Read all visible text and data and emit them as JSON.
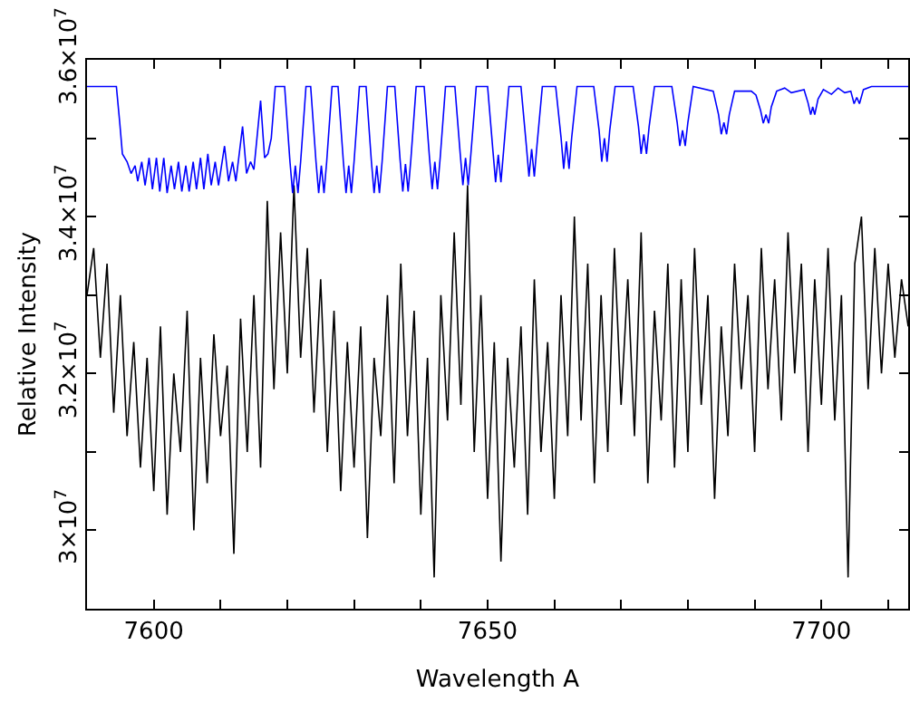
{
  "chart_data": {
    "type": "line",
    "xlabel": "Wavelength A",
    "ylabel": "Relative Intensity",
    "xlim": [
      7590,
      7713
    ],
    "ylim": [
      29000000.0,
      36000000.0
    ],
    "xticks": [
      7600,
      {
        "value": 7610,
        "label": null
      },
      {
        "value": 7620,
        "label": null
      },
      {
        "value": 7630,
        "label": null
      },
      {
        "value": 7640,
        "label": null
      },
      7650,
      {
        "value": 7660,
        "label": null
      },
      {
        "value": 7670,
        "label": null
      },
      {
        "value": 7680,
        "label": null
      },
      {
        "value": 7690,
        "label": null
      },
      7700,
      {
        "value": 7710,
        "label": null
      }
    ],
    "yticks": [
      {
        "value": 30000000.0,
        "label": "3×10$^{7}$"
      },
      {
        "value": 31000000.0,
        "label": null
      },
      {
        "value": 32000000.0,
        "label": "3.2×10$^{7}$"
      },
      {
        "value": 33000000.0,
        "label": null
      },
      {
        "value": 34000000.0,
        "label": "3.4×10$^{7}$"
      },
      {
        "value": 35000000.0,
        "label": null
      },
      {
        "value": 36000000.0,
        "label": "3.6×10$^{7}$"
      }
    ],
    "grid": false,
    "marker": "none",
    "line_style": "solid",
    "series": [
      {
        "color": "#000000",
        "x": [
          7590,
          7591,
          7592,
          7593,
          7594,
          7595,
          7596,
          7597,
          7598,
          7599,
          7600,
          7601,
          7602,
          7603,
          7604,
          7605,
          7606,
          7607,
          7608,
          7609,
          7610,
          7611,
          7612,
          7613,
          7614,
          7615,
          7616,
          7617,
          7618,
          7619,
          7620,
          7621,
          7622,
          7623,
          7624,
          7625,
          7626,
          7627,
          7628,
          7629,
          7630,
          7631,
          7632,
          7633,
          7634,
          7635,
          7636,
          7637,
          7638,
          7639,
          7640,
          7641,
          7642,
          7643,
          7644,
          7645,
          7646,
          7647,
          7648,
          7649,
          7650,
          7651,
          7652,
          7653,
          7654,
          7655,
          7656,
          7657,
          7658,
          7659,
          7660,
          7661,
          7662,
          7663,
          7664,
          7665,
          7666,
          7667,
          7668,
          7669,
          7670,
          7671,
          7672,
          7673,
          7674,
          7675,
          7676,
          7677,
          7678,
          7679,
          7680,
          7681,
          7682,
          7683,
          7684,
          7685,
          7686,
          7687,
          7688,
          7689,
          7690,
          7691,
          7692,
          7693,
          7694,
          7695,
          7696,
          7697,
          7698,
          7699,
          7700,
          7701,
          7702,
          7703,
          7704,
          7705,
          7706,
          7707,
          7708,
          7709,
          7710,
          7711,
          7712,
          7713
        ],
        "values": [
          33000000.0,
          33600000.0,
          32200000.0,
          33400000.0,
          31500000.0,
          33000000.0,
          31200000.0,
          32400000.0,
          30800000.0,
          32200000.0,
          30500000.0,
          32600000.0,
          30200000.0,
          32000000.0,
          31000000.0,
          32800000.0,
          30000000.0,
          32200000.0,
          30600000.0,
          32500000.0,
          31200000.0,
          32100000.0,
          29700000.0,
          32700000.0,
          31000000.0,
          33000000.0,
          30800000.0,
          34200000.0,
          31800000.0,
          33800000.0,
          32000000.0,
          34400000.0,
          32200000.0,
          33600000.0,
          31500000.0,
          33200000.0,
          31000000.0,
          32800000.0,
          30500000.0,
          32400000.0,
          30800000.0,
          32600000.0,
          29900000.0,
          32200000.0,
          31200000.0,
          33000000.0,
          30600000.0,
          33400000.0,
          31200000.0,
          32800000.0,
          30200000.0,
          32200000.0,
          29400000.0,
          33000000.0,
          31400000.0,
          33800000.0,
          31600000.0,
          34400000.0,
          31000000.0,
          33000000.0,
          30400000.0,
          32400000.0,
          29600000.0,
          32200000.0,
          30800000.0,
          32600000.0,
          30200000.0,
          33200000.0,
          31000000.0,
          32400000.0,
          30400000.0,
          33000000.0,
          31200000.0,
          34000000.0,
          31400000.0,
          33400000.0,
          30600000.0,
          33000000.0,
          31000000.0,
          33600000.0,
          31600000.0,
          33200000.0,
          31200000.0,
          33800000.0,
          30600000.0,
          32800000.0,
          31400000.0,
          33400000.0,
          30800000.0,
          33200000.0,
          31000000.0,
          33600000.0,
          31600000.0,
          33000000.0,
          30400000.0,
          32600000.0,
          31200000.0,
          33400000.0,
          31800000.0,
          33000000.0,
          31000000.0,
          33600000.0,
          31800000.0,
          33200000.0,
          31400000.0,
          33800000.0,
          32000000.0,
          33400000.0,
          31000000.0,
          33200000.0,
          31600000.0,
          33600000.0,
          31400000.0,
          33000000.0,
          29400000.0,
          33400000.0,
          34000000.0,
          31800000.0,
          33600000.0,
          32000000.0,
          33400000.0,
          32200000.0,
          33200000.0,
          32600000.0
        ]
      },
      {
        "color": "#0000ff",
        "x": [
          7590,
          7594.4,
          7594.9,
          7595.3,
          7596,
          7596.6,
          7597.2,
          7597.6,
          7598.2,
          7598.7,
          7599.3,
          7599.8,
          7600.4,
          7600.9,
          7601.5,
          7602,
          7602.6,
          7603.1,
          7603.7,
          7604.2,
          7604.8,
          7605.3,
          7605.9,
          7606.4,
          7607,
          7607.5,
          7608.1,
          7608.6,
          7609.2,
          7609.7,
          7610.6,
          7611.2,
          7611.8,
          7612.3,
          7613.3,
          7613.9,
          7614.5,
          7615,
          7616,
          7616.6,
          7617.1,
          7617.6,
          7618.2,
          7619.6,
          7620.4,
          7620.8,
          7621.2,
          7621.6,
          7622,
          7622.8,
          7623.5,
          7624.3,
          7624.7,
          7625.1,
          7625.5,
          7625.9,
          7626.7,
          7627.6,
          7628.4,
          7628.8,
          7629.2,
          7629.6,
          7630,
          7630.8,
          7631.8,
          7632.6,
          7633,
          7633.4,
          7633.8,
          7634.2,
          7635,
          7636.1,
          7636.9,
          7637.3,
          7637.7,
          7638.1,
          7638.5,
          7639.3,
          7640.5,
          7641.3,
          7641.7,
          7642.1,
          7642.5,
          7642.9,
          7643.7,
          7645.1,
          7645.9,
          7646.3,
          7646.7,
          7647.1,
          7647.5,
          7648.3,
          7650,
          7650.8,
          7651.2,
          7651.6,
          7652,
          7652.4,
          7653.2,
          7655,
          7655.8,
          7656.2,
          7656.6,
          7657,
          7657.4,
          7658.2,
          7660.2,
          7661,
          7661.4,
          7661.8,
          7662.2,
          7662.6,
          7663.4,
          7665.9,
          7666.7,
          7667.1,
          7667.5,
          7667.9,
          7668.3,
          7669.1,
          7671.8,
          7672.6,
          7673,
          7673.4,
          7673.8,
          7674.2,
          7675,
          7677.6,
          7678.4,
          7678.8,
          7679.2,
          7679.6,
          7680,
          7680.8,
          7683.8,
          7684.6,
          7685,
          7685.4,
          7685.8,
          7686.2,
          7687,
          7689.5,
          7690.2,
          7690.9,
          7691.3,
          7691.7,
          7692.1,
          7692.5,
          7693.3,
          7694.5,
          7695.5,
          7697.4,
          7698,
          7698.4,
          7698.7,
          7699,
          7699.5,
          7700.3,
          7701.5,
          7702.5,
          7703.5,
          7704.4,
          7704.9,
          7705.3,
          7705.7,
          7706.3,
          7707.5,
          7713
        ],
        "values": [
          35660000.0,
          35660000.0,
          35200000.0,
          34800000.0,
          34700000.0,
          34550000.0,
          34650000.0,
          34450000.0,
          34700000.0,
          34400000.0,
          34750000.0,
          34350000.0,
          34750000.0,
          34320000.0,
          34750000.0,
          34300000.0,
          34650000.0,
          34350000.0,
          34700000.0,
          34320000.0,
          34650000.0,
          34320000.0,
          34700000.0,
          34350000.0,
          34750000.0,
          34350000.0,
          34800000.0,
          34400000.0,
          34700000.0,
          34400000.0,
          34900000.0,
          34450000.0,
          34700000.0,
          34450000.0,
          35150000.0,
          34550000.0,
          34700000.0,
          34600000.0,
          35480000.0,
          34750000.0,
          34800000.0,
          35000000.0,
          35660000.0,
          35660000.0,
          34700000.0,
          34300000.0,
          34650000.0,
          34300000.0,
          34700000.0,
          35660000.0,
          35660000.0,
          34700000.0,
          34300000.0,
          34650000.0,
          34300000.0,
          34700000.0,
          35660000.0,
          35660000.0,
          34700000.0,
          34300000.0,
          34650000.0,
          34300000.0,
          34700000.0,
          35660000.0,
          35660000.0,
          34700000.0,
          34300000.0,
          34650000.0,
          34300000.0,
          34700000.0,
          35660000.0,
          35660000.0,
          34720000.0,
          34320000.0,
          34670000.0,
          34320000.0,
          34720000.0,
          35660000.0,
          35660000.0,
          34750000.0,
          34350000.0,
          34700000.0,
          34350000.0,
          34750000.0,
          35660000.0,
          35660000.0,
          34800000.0,
          34400000.0,
          34750000.0,
          34400000.0,
          34800000.0,
          35660000.0,
          35660000.0,
          34840000.0,
          34440000.0,
          34790000.0,
          34440000.0,
          34840000.0,
          35660000.0,
          35660000.0,
          34910000.0,
          34510000.0,
          34860000.0,
          34510000.0,
          34910000.0,
          35660000.0,
          35660000.0,
          35010000.0,
          34610000.0,
          34960000.0,
          34610000.0,
          35010000.0,
          35660000.0,
          35660000.0,
          35100000.0,
          34700000.0,
          35000000.0,
          34700000.0,
          35100000.0,
          35660000.0,
          35660000.0,
          35150000.0,
          34800000.0,
          35050000.0,
          34800000.0,
          35150000.0,
          35660000.0,
          35660000.0,
          35200000.0,
          34900000.0,
          35100000.0,
          34900000.0,
          35200000.0,
          35660000.0,
          35600000.0,
          35300000.0,
          35050000.0,
          35200000.0,
          35050000.0,
          35300000.0,
          35600000.0,
          35600000.0,
          35550000.0,
          35350000.0,
          35190000.0,
          35300000.0,
          35190000.0,
          35400000.0,
          35600000.0,
          35640000.0,
          35580000.0,
          35620000.0,
          35450000.0,
          35300000.0,
          35400000.0,
          35300000.0,
          35500000.0,
          35620000.0,
          35560000.0,
          35640000.0,
          35580000.0,
          35600000.0,
          35440000.0,
          35520000.0,
          35440000.0,
          35620000.0,
          35660000.0,
          35660000.0
        ]
      }
    ]
  }
}
